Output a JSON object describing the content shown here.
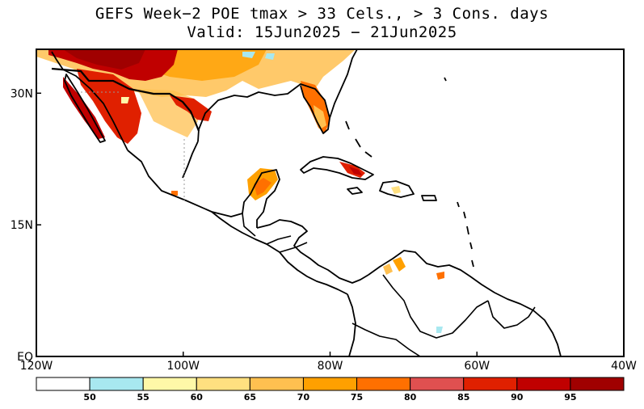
{
  "title": {
    "line1": "GEFS Week−2 POE tmax > 33 Cels., > 3 Cons. days",
    "line2": "Valid: 15Jun2025 − 21Jun2025"
  },
  "map": {
    "projection": "lat-lon",
    "lon_range": [
      -120,
      -40
    ],
    "lat_range": [
      0,
      35
    ],
    "x_ticks": [
      {
        "value": -120,
        "label": "120W"
      },
      {
        "value": -100,
        "label": "100W"
      },
      {
        "value": -80,
        "label": "80W"
      },
      {
        "value": -60,
        "label": "60W"
      },
      {
        "value": -40,
        "label": "40W"
      }
    ],
    "y_ticks": [
      {
        "value": 30,
        "label": "30N"
      },
      {
        "value": 15,
        "label": "15N"
      },
      {
        "value": 0,
        "label": "EQ"
      }
    ]
  },
  "colorbar": {
    "boundaries": [
      "50",
      "55",
      "60",
      "65",
      "70",
      "75",
      "80",
      "85",
      "90",
      "95"
    ],
    "colors": [
      "#ffffff",
      "#a8e8f0",
      "#fff8a8",
      "#ffe080",
      "#ffc050",
      "#ffa000",
      "#ff7000",
      "#e05050",
      "#e02000",
      "#c00000",
      "#a00000"
    ]
  }
}
